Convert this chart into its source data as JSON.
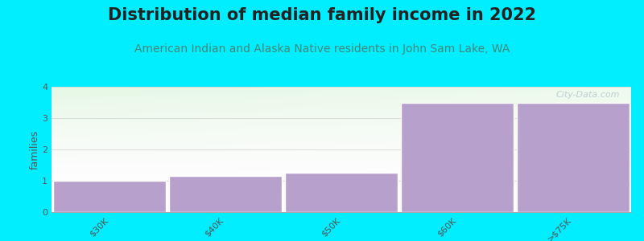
{
  "title": "Distribution of median family income in 2022",
  "subtitle": "American Indian and Alaska Native residents in John Sam Lake, WA",
  "categories": [
    "$30K",
    "$40K",
    "$50K",
    "$60K",
    ">$75K"
  ],
  "values": [
    1.0,
    1.15,
    1.25,
    3.5,
    3.5
  ],
  "bar_color": "#b8a0cc",
  "bar_edge_color": "#ffffff",
  "background_color": "#00eeff",
  "plot_bg_color": "#ffffff",
  "ylabel": "families",
  "ylim": [
    0,
    4
  ],
  "yticks": [
    0,
    1,
    2,
    3,
    4
  ],
  "title_fontsize": 15,
  "subtitle_fontsize": 10,
  "subtitle_color": "#448877",
  "title_color": "#222222",
  "watermark": "City-Data.com",
  "grid_color": "#dddddd",
  "ylabel_fontsize": 9,
  "tick_fontsize": 8
}
